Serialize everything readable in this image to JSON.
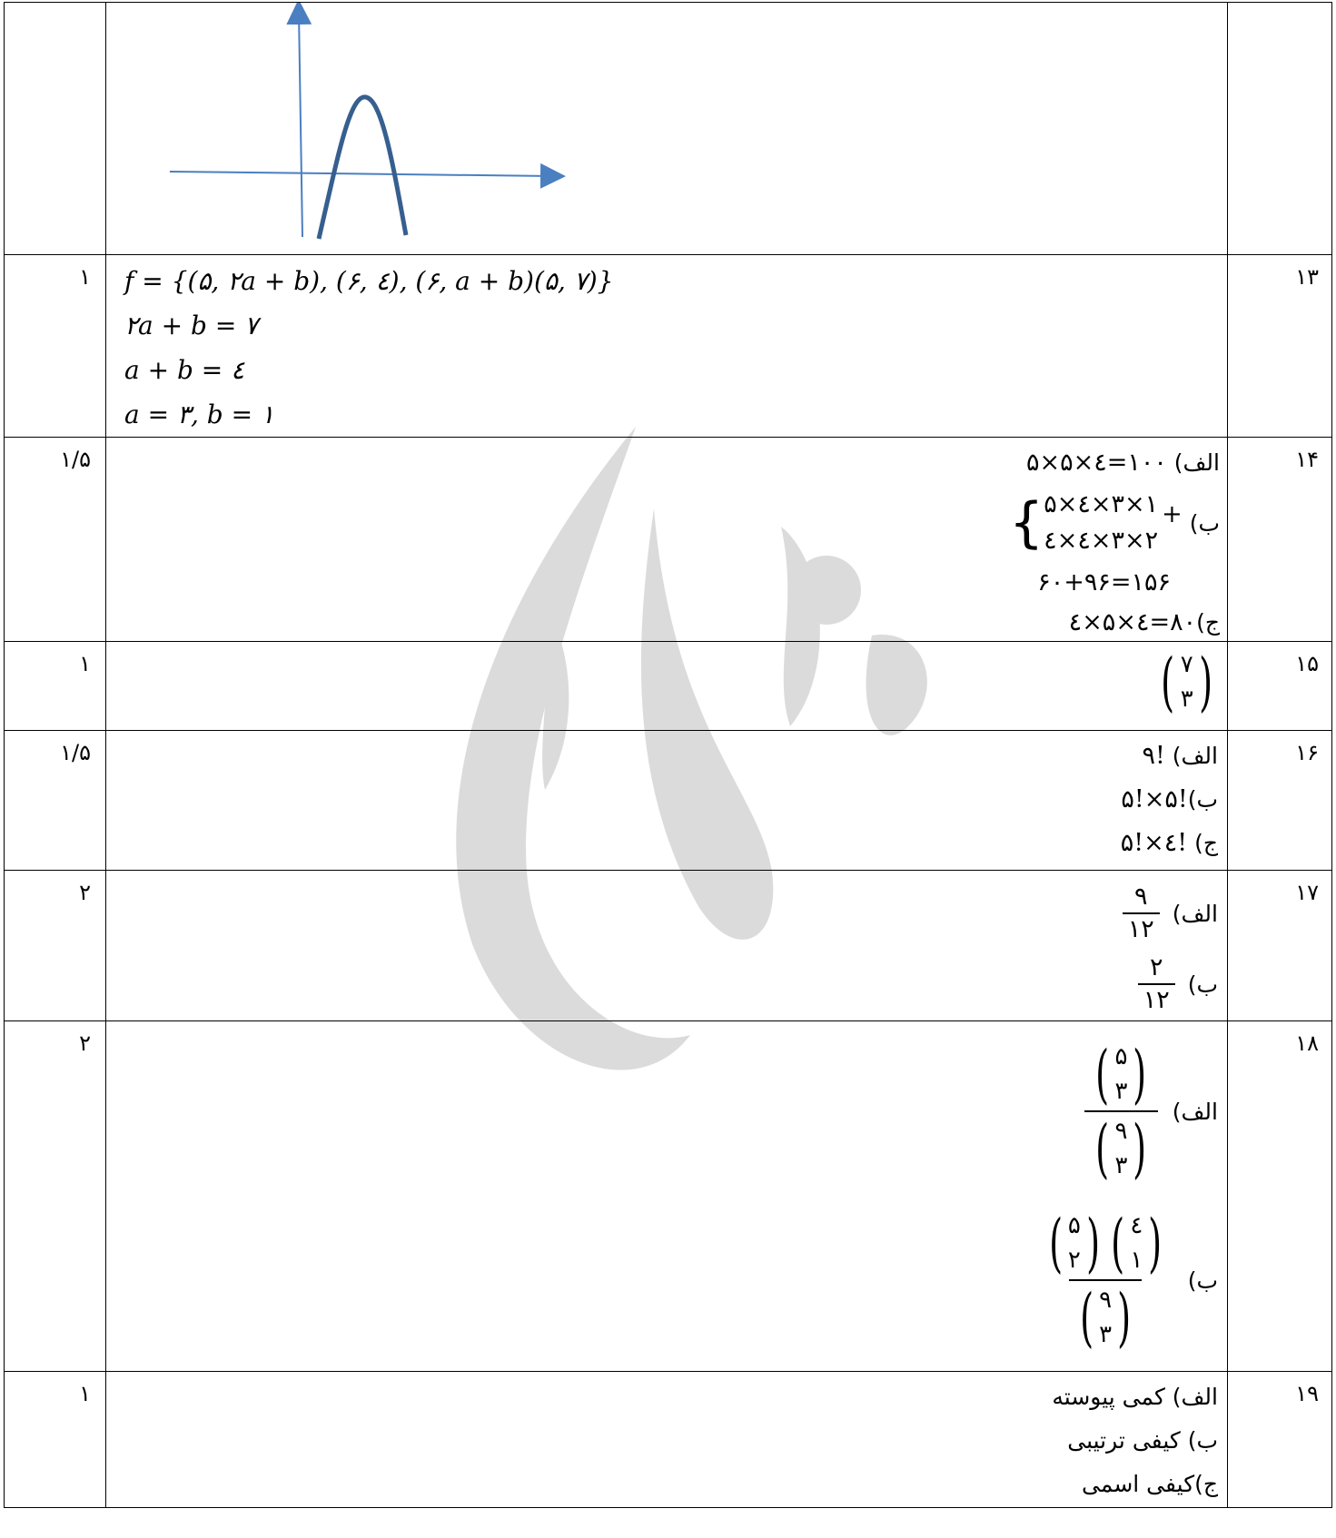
{
  "rows": [
    {
      "num": "",
      "score": ""
    },
    {
      "num": "۱۳",
      "score": "۱",
      "lines": [
        "f  = {(۵, ۲a + b), (۶, ٤), (۶, a + b)(۵, ۷)}",
        "۲a + b = ۷",
        "a + b = ٤",
        "a = ۳, b = ۱"
      ]
    },
    {
      "num": "۱۴",
      "score": "۱/۵",
      "a_label": "الف)",
      "a_expr": "۵×۵×٤=۱۰۰",
      "b_label": "ب)",
      "b_top": "۵×٤×۳×۱",
      "b_bottom": "٤×٤×۳×۲",
      "b_plus": "+",
      "b_sum": "۶۰+۹۶=۱۵۶",
      "c_label": "ج)",
      "c_expr": "٤×۵×٤=۸۰"
    },
    {
      "num": "۱۵",
      "score": "۱",
      "binom_top": "۷",
      "binom_bottom": "۳"
    },
    {
      "num": "۱۶",
      "score": "۱/۵",
      "a_label": "الف)",
      "a_expr": "!۹",
      "b_label": "ب)",
      "b_expr": "!۵×!۵",
      "c_label": "ج)",
      "c_expr": "!٤×!۵"
    },
    {
      "num": "۱۷",
      "score": "۲",
      "a_label": "الف)",
      "a_num": "۹",
      "a_den": "۱۲",
      "b_label": "ب)",
      "b_num": "۲",
      "b_den": "۱۲"
    },
    {
      "num": "۱۸",
      "score": "۲",
      "a_label": "الف)",
      "a_top": [
        "۵",
        "۳"
      ],
      "a_bottom": [
        "۹",
        "۳"
      ],
      "b_label": "ب)",
      "b_top1": [
        "۵",
        "۲"
      ],
      "b_top2": [
        "٤",
        "۱"
      ],
      "b_bottom": [
        "۹",
        "۳"
      ]
    },
    {
      "num": "۱۹",
      "score": "۱",
      "lines": [
        "الف) کمی پیوسته",
        "ب) کیفی ترتیبی",
        "ج)کیفی اسمی"
      ]
    }
  ]
}
